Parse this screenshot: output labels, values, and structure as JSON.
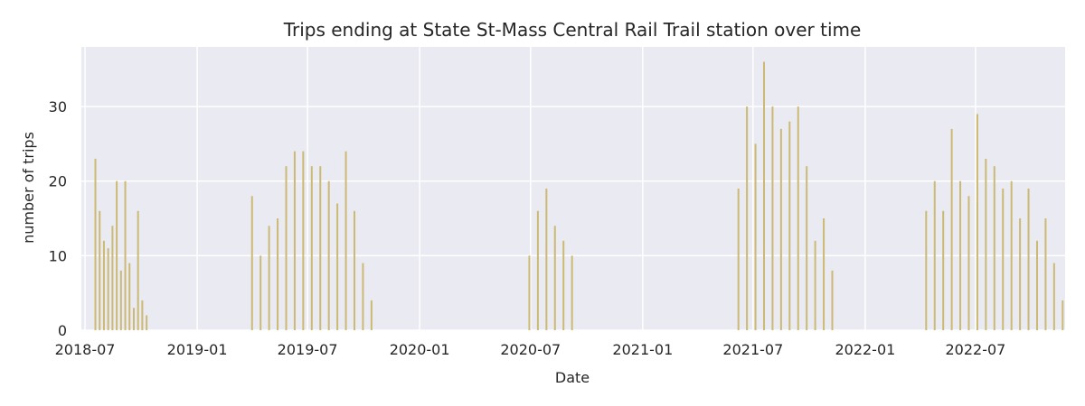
{
  "chart_data": {
    "type": "bar",
    "title": "Trips ending at State St-Mass Central Rail Trail station over time",
    "xlabel": "Date",
    "ylabel": "number of trips",
    "x_range": [
      "2018-06-25",
      "2022-11-25"
    ],
    "ylim": [
      0,
      38
    ],
    "x_ticks": [
      "2018-07",
      "2019-01",
      "2019-07",
      "2020-01",
      "2020-07",
      "2021-01",
      "2021-07",
      "2022-01",
      "2022-07"
    ],
    "y_ticks": [
      0,
      10,
      20,
      30
    ],
    "grid": true,
    "bar_color": "#ccb974",
    "background_color": "#eaeaf2",
    "series": [
      {
        "name": "",
        "x": [
          "2018-07-18",
          "2018-07-25",
          "2018-08-01",
          "2018-08-08",
          "2018-08-15",
          "2018-08-22",
          "2018-08-29",
          "2018-09-05",
          "2018-09-12",
          "2018-09-19",
          "2018-09-26",
          "2018-10-03",
          "2018-10-10",
          "2018-10-17",
          "2018-10-24",
          "2018-10-31",
          "2019-04-01",
          "2019-04-15",
          "2019-04-29",
          "2019-05-13",
          "2019-05-27",
          "2019-06-10",
          "2019-06-24",
          "2019-07-08",
          "2019-07-22",
          "2019-08-05",
          "2019-08-19",
          "2019-09-02",
          "2019-09-16",
          "2019-09-30",
          "2019-10-14",
          "2019-10-28",
          "2020-06-29",
          "2020-07-13",
          "2020-07-27",
          "2020-08-10",
          "2020-08-24",
          "2020-09-07",
          "2020-09-21",
          "2021-06-07",
          "2021-06-21",
          "2021-07-05",
          "2021-07-19",
          "2021-08-02",
          "2021-08-16",
          "2021-08-30",
          "2021-09-13",
          "2021-09-27",
          "2021-10-11",
          "2021-10-25",
          "2021-11-08",
          "2022-04-11",
          "2022-04-25",
          "2022-05-09",
          "2022-05-23",
          "2022-06-06",
          "2022-06-20",
          "2022-07-04",
          "2022-07-18",
          "2022-08-01",
          "2022-08-15",
          "2022-08-29",
          "2022-09-12",
          "2022-09-26",
          "2022-10-10",
          "2022-10-24",
          "2022-11-07",
          "2022-11-21"
        ],
        "values": [
          23,
          16,
          12,
          11,
          14,
          20,
          8,
          20,
          9,
          3,
          16,
          4,
          2,
          0,
          0,
          0,
          18,
          10,
          14,
          15,
          22,
          24,
          24,
          22,
          22,
          20,
          17,
          24,
          16,
          9,
          4,
          0,
          10,
          16,
          19,
          14,
          12,
          10,
          0,
          19,
          30,
          25,
          36,
          30,
          27,
          28,
          30,
          22,
          12,
          15,
          8,
          16,
          20,
          16,
          27,
          20,
          18,
          29,
          23,
          22,
          19,
          20,
          15,
          19,
          12,
          15,
          9,
          4
        ]
      }
    ]
  }
}
